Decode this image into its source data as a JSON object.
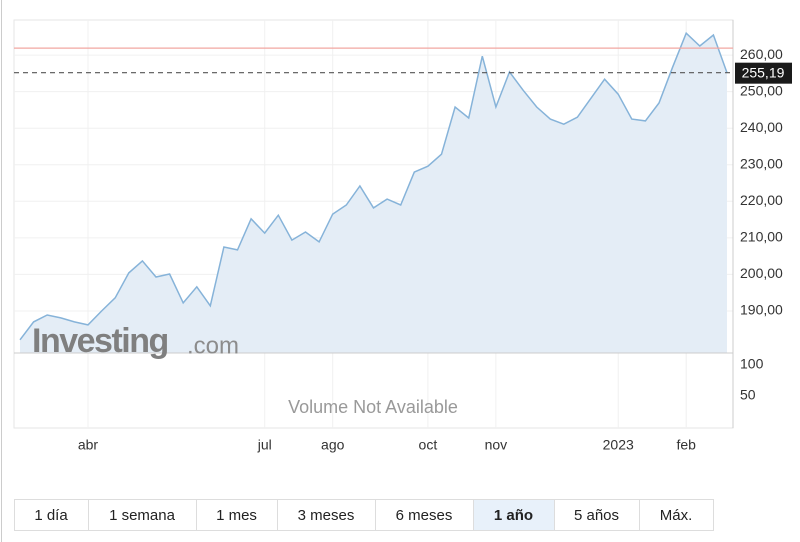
{
  "chart_data": {
    "type": "area",
    "categories": [
      null,
      null,
      null,
      null,
      null,
      "abr",
      null,
      null,
      null,
      null,
      null,
      null,
      null,
      null,
      null,
      null,
      null,
      null,
      "jul",
      null,
      null,
      null,
      null,
      "ago",
      null,
      null,
      null,
      null,
      null,
      null,
      "oct",
      null,
      null,
      null,
      null,
      "nov",
      null,
      null,
      null,
      null,
      null,
      null,
      null,
      null,
      "2023",
      null,
      null,
      null,
      null,
      "feb",
      null,
      null,
      null
    ],
    "series": [
      {
        "color": "#86b3d9",
        "fill": "#e4edf6",
        "values": [
          182.1,
          187.0,
          188.9,
          188.1,
          187.0,
          186.2,
          190.0,
          193.6,
          200.4,
          203.7,
          199.3,
          200.1,
          192.2,
          196.6,
          191.4,
          207.5,
          206.7,
          215.2,
          211.3,
          216.2,
          209.4,
          211.6,
          208.9,
          216.5,
          219.0,
          224.2,
          218.2,
          220.6,
          219.0,
          228.0,
          229.6,
          232.9,
          245.8,
          242.8,
          259.7,
          245.8,
          255.4,
          250.4,
          245.8,
          242.5,
          241.1,
          243.0,
          248.2,
          253.4,
          249.3,
          242.5,
          242.0,
          246.9,
          256.7,
          266.0,
          262.5,
          265.5,
          255.19
        ]
      }
    ],
    "ylim": [
      178.5,
      269.6
    ],
    "yticks": [
      {
        "value": 190,
        "label": "190,00"
      },
      {
        "value": 200,
        "label": "200,00"
      },
      {
        "value": 210,
        "label": "210,00"
      },
      {
        "value": 220,
        "label": "220,00"
      },
      {
        "value": 230,
        "label": "230,00"
      },
      {
        "value": 240,
        "label": "240,00"
      },
      {
        "value": 250,
        "label": "250,00"
      },
      {
        "value": 260,
        "label": "260,00"
      }
    ],
    "grid": true,
    "reference_line": {
      "value": 261.9,
      "color": "#f2a7a2"
    },
    "current_price": {
      "value": 255.19,
      "label": "255,19"
    },
    "volume_ylim": [
      -1.6,
      119.4
    ],
    "volume_yticks": [
      100,
      50
    ],
    "volume_note": "Volume Not Available",
    "watermark": [
      "Investing",
      ".com"
    ]
  },
  "range_buttons": [
    "1 día",
    "1 semana",
    "1 mes",
    "3 meses",
    "6 meses",
    "1 año",
    "5 años",
    "Máx."
  ],
  "active_range": 5
}
